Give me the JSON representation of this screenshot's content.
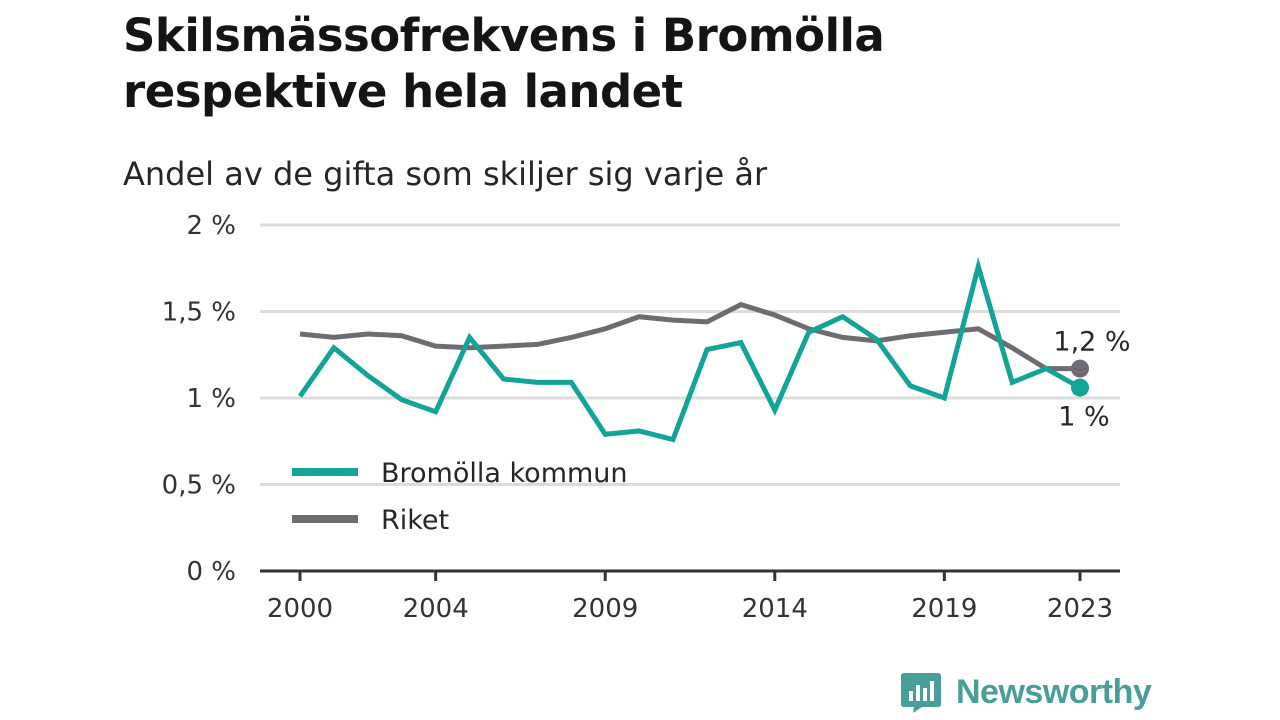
{
  "title": "Skilsmässofrekvens i Bromölla respektive hela landet",
  "subtitle": "Andel av de gifta som skiljer sig varje år",
  "brand": {
    "name": "Newsworthy",
    "icon": "newsworthy-logo-icon",
    "color": "#4a9e99"
  },
  "chart_data": {
    "type": "line",
    "title": "Skilsmässofrekvens i Bromölla respektive hela landet",
    "subtitle": "Andel av de gifta som skiljer sig varje år",
    "x": [
      2000,
      2001,
      2002,
      2003,
      2004,
      2005,
      2006,
      2007,
      2008,
      2009,
      2010,
      2011,
      2012,
      2013,
      2014,
      2015,
      2016,
      2017,
      2018,
      2019,
      2020,
      2021,
      2022,
      2023
    ],
    "x_ticks": [
      2000,
      2004,
      2009,
      2014,
      2019,
      2023
    ],
    "x_tick_labels": [
      "2000",
      "2004",
      "2009",
      "2014",
      "2019",
      "2023"
    ],
    "y_ticks": [
      0,
      0.5,
      1,
      1.5,
      2
    ],
    "y_tick_labels": [
      "0 %",
      "0,5 %",
      "1 %",
      "1,5 %",
      "2 %"
    ],
    "ylim": [
      0,
      2
    ],
    "grid": true,
    "legend_position": "bottom-left",
    "series": [
      {
        "name": "Bromölla kommun",
        "color": "#12a497",
        "values": [
          1.01,
          1.29,
          1.13,
          0.99,
          0.92,
          1.35,
          1.11,
          1.09,
          1.09,
          0.79,
          0.81,
          0.76,
          1.28,
          1.32,
          0.93,
          1.38,
          1.47,
          1.34,
          1.07,
          1.0,
          1.76,
          1.09,
          1.17,
          1.06
        ],
        "end_label": "1 %"
      },
      {
        "name": "Riket",
        "color": "#6e6c72",
        "values": [
          1.37,
          1.35,
          1.37,
          1.36,
          1.3,
          1.29,
          1.3,
          1.31,
          1.35,
          1.4,
          1.47,
          1.45,
          1.44,
          1.54,
          1.48,
          1.4,
          1.35,
          1.33,
          1.36,
          1.38,
          1.4,
          1.29,
          1.17,
          1.17
        ],
        "end_label": "1,2 %"
      }
    ]
  }
}
